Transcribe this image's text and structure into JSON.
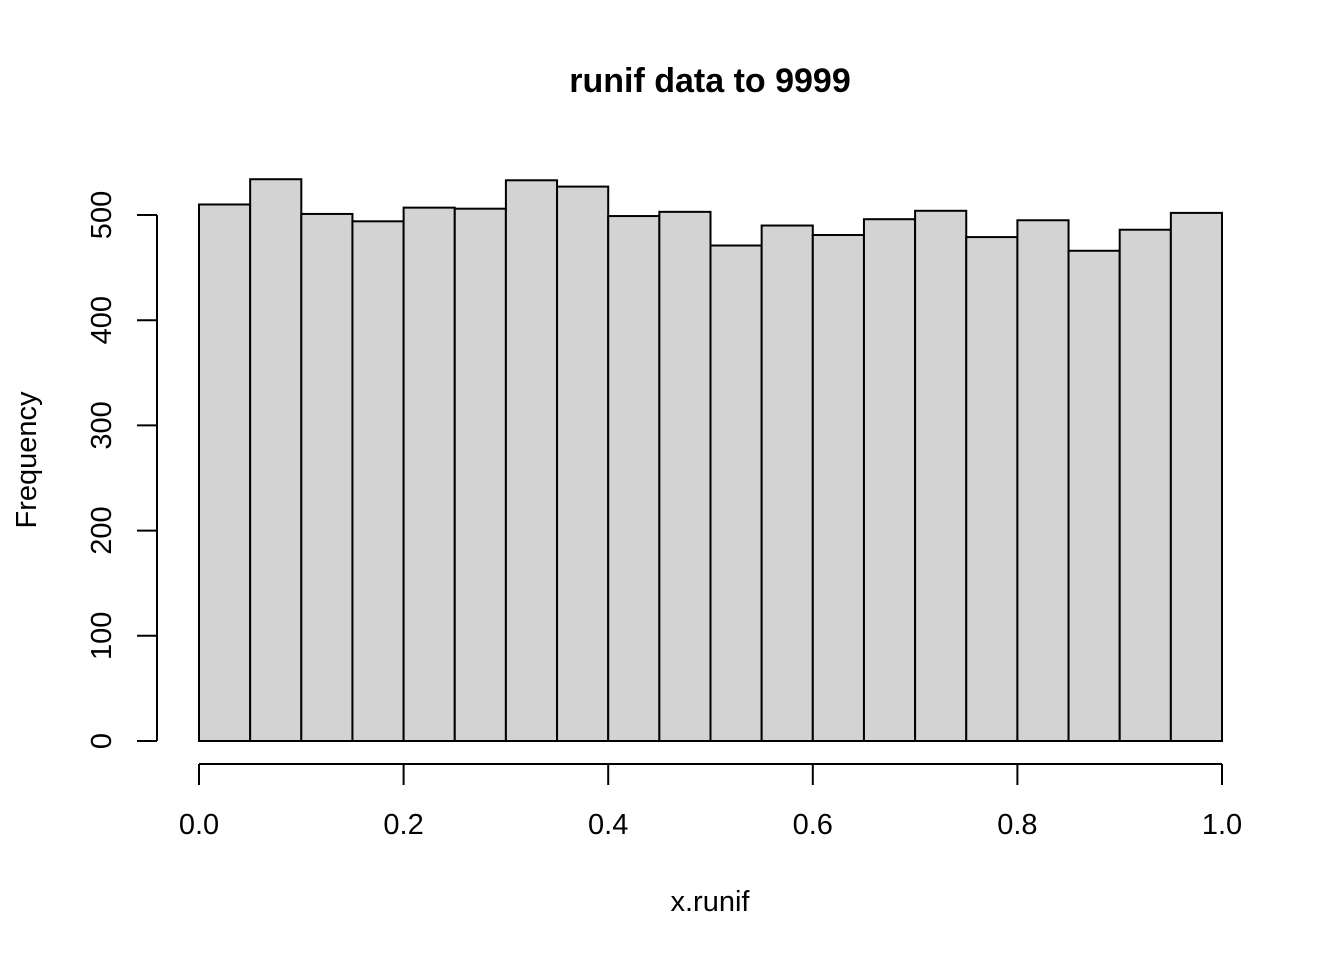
{
  "chart_data": {
    "type": "bar",
    "title": "runif data to  9999",
    "xlabel": "x.runif",
    "ylabel": "Frequency",
    "bin_edges": [
      0.0,
      0.05,
      0.1,
      0.15,
      0.2,
      0.25,
      0.3,
      0.35,
      0.4,
      0.45,
      0.5,
      0.55,
      0.6,
      0.65,
      0.7,
      0.75,
      0.8,
      0.85,
      0.9,
      0.95,
      1.0
    ],
    "values": [
      510,
      534,
      501,
      494,
      507,
      506,
      533,
      527,
      499,
      503,
      471,
      490,
      481,
      496,
      504,
      479,
      495,
      466,
      486,
      502
    ],
    "xlim": [
      0.0,
      1.0
    ],
    "ylim": [
      0,
      540
    ],
    "x_ticks": [
      0.0,
      0.2,
      0.4,
      0.6,
      0.8,
      1.0
    ],
    "x_tick_labels": [
      "0.0",
      "0.2",
      "0.4",
      "0.6",
      "0.8",
      "1.0"
    ],
    "y_ticks": [
      0,
      100,
      200,
      300,
      400,
      500
    ],
    "y_tick_labels": [
      "0",
      "100",
      "200",
      "300",
      "400",
      "500"
    ],
    "bar_color": "#d3d3d3",
    "edge_color": "#000000",
    "grid": false,
    "legend": "none"
  }
}
